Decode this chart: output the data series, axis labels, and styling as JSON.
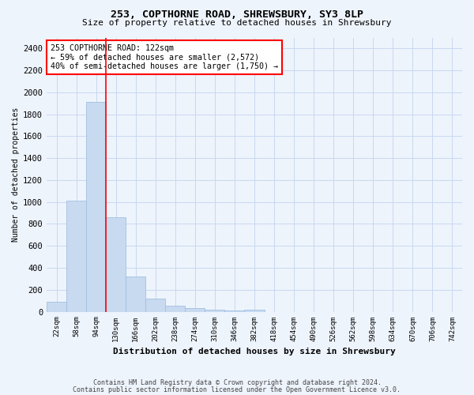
{
  "title1": "253, COPTHORNE ROAD, SHREWSBURY, SY3 8LP",
  "title2": "Size of property relative to detached houses in Shrewsbury",
  "xlabel": "Distribution of detached houses by size in Shrewsbury",
  "ylabel": "Number of detached properties",
  "bin_labels": [
    "22sqm",
    "58sqm",
    "94sqm",
    "130sqm",
    "166sqm",
    "202sqm",
    "238sqm",
    "274sqm",
    "310sqm",
    "346sqm",
    "382sqm",
    "418sqm",
    "454sqm",
    "490sqm",
    "526sqm",
    "562sqm",
    "598sqm",
    "634sqm",
    "670sqm",
    "706sqm",
    "742sqm"
  ],
  "bar_heights": [
    90,
    1010,
    1910,
    860,
    320,
    120,
    55,
    35,
    20,
    10,
    15,
    0,
    0,
    0,
    0,
    0,
    0,
    0,
    0,
    0,
    0
  ],
  "bar_color": "#c8daf0",
  "bar_edge_color": "#a0c0e0",
  "grid_color": "#c8d8f0",
  "red_line_x": 2.5,
  "annotation_text": "253 COPTHORNE ROAD: 122sqm\n← 59% of detached houses are smaller (2,572)\n40% of semi-detached houses are larger (1,750) →",
  "annotation_box_color": "white",
  "annotation_box_edge_color": "red",
  "ylim": [
    0,
    2500
  ],
  "yticks": [
    0,
    200,
    400,
    600,
    800,
    1000,
    1200,
    1400,
    1600,
    1800,
    2000,
    2200,
    2400
  ],
  "footer1": "Contains HM Land Registry data © Crown copyright and database right 2024.",
  "footer2": "Contains public sector information licensed under the Open Government Licence v3.0.",
  "bg_color": "#eef4fc"
}
